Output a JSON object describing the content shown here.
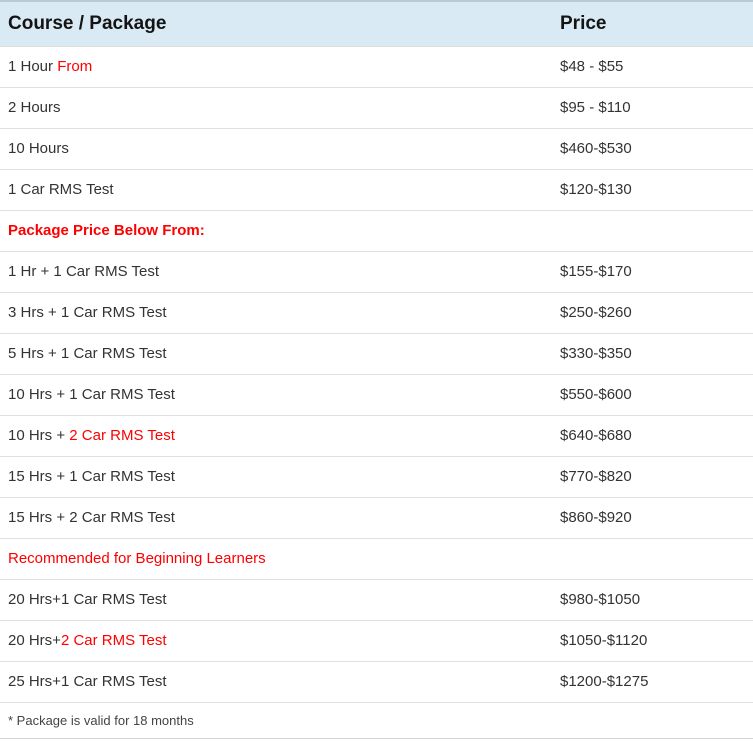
{
  "colors": {
    "header_bg": "#d9eaf4",
    "top_border": "#b8cbd4",
    "row_divider": "#e0e0e0",
    "highlight_red": "#fe0000",
    "body_text": "#333333"
  },
  "table": {
    "headers": {
      "course": "Course / Package",
      "price": "Price"
    },
    "rows": [
      {
        "type": "item",
        "style": "",
        "course": [
          {
            "text": "1 Hour ",
            "red": false
          },
          {
            "text": "From",
            "red": true
          }
        ],
        "price": "$48 - $55"
      },
      {
        "type": "item",
        "style": "",
        "course": [
          {
            "text": "2 Hours",
            "red": false
          }
        ],
        "price": "$95 - $110"
      },
      {
        "type": "item",
        "style": "",
        "course": [
          {
            "text": "10 Hours",
            "red": false
          }
        ],
        "price": "$460-$530"
      },
      {
        "type": "item",
        "style": "",
        "course": [
          {
            "text": "1 Car RMS Test",
            "red": false
          }
        ],
        "price": "$120-$130"
      },
      {
        "type": "section",
        "style": "bold",
        "course": [
          {
            "text": "Package Price Below From:",
            "red": true
          }
        ],
        "price": ""
      },
      {
        "type": "item",
        "style": "",
        "course": [
          {
            "text": "1 Hr + 1 Car RMS Test",
            "red": false
          }
        ],
        "price": "$155-$170"
      },
      {
        "type": "item",
        "style": "",
        "course": [
          {
            "text": "3 Hrs + 1 Car RMS Test",
            "red": false
          }
        ],
        "price": "$250-$260"
      },
      {
        "type": "item",
        "style": "",
        "course": [
          {
            "text": "5 Hrs + 1 Car RMS Test",
            "red": false
          }
        ],
        "price": "$330-$350"
      },
      {
        "type": "item",
        "style": "",
        "course": [
          {
            "text": "10 Hrs + 1 Car RMS Test",
            "red": false
          }
        ],
        "price": "$550-$600"
      },
      {
        "type": "item",
        "style": "",
        "course": [
          {
            "text": "10 Hrs + ",
            "red": false
          },
          {
            "text": "2 Car RMS Test",
            "red": true
          }
        ],
        "price": "$640-$680"
      },
      {
        "type": "item",
        "style": "",
        "course": [
          {
            "text": "15 Hrs + 1 Car RMS Test",
            "red": false
          }
        ],
        "price": "$770-$820"
      },
      {
        "type": "item",
        "style": "",
        "course": [
          {
            "text": "15 Hrs + 2 Car RMS Test",
            "red": false
          }
        ],
        "price": "$860-$920"
      },
      {
        "type": "section",
        "style": "bold-italic",
        "course": [
          {
            "text": "Recommended for Beginning Learners",
            "red": true
          }
        ],
        "price": ""
      },
      {
        "type": "item",
        "style": "",
        "course": [
          {
            "text": "20 Hrs+1 Car RMS Test",
            "red": false
          }
        ],
        "price": "$980-$1050"
      },
      {
        "type": "item",
        "style": "",
        "course": [
          {
            "text": "20 Hrs+",
            "red": false
          },
          {
            "text": "2 Car RMS Test",
            "red": true
          }
        ],
        "price": "$1050-$1120"
      },
      {
        "type": "item",
        "style": "",
        "course": [
          {
            "text": "25 Hrs+1 Car RMS Test",
            "red": false
          }
        ],
        "price": "$1200-$1275"
      }
    ],
    "footnote": "* Package is valid for 18 months"
  }
}
